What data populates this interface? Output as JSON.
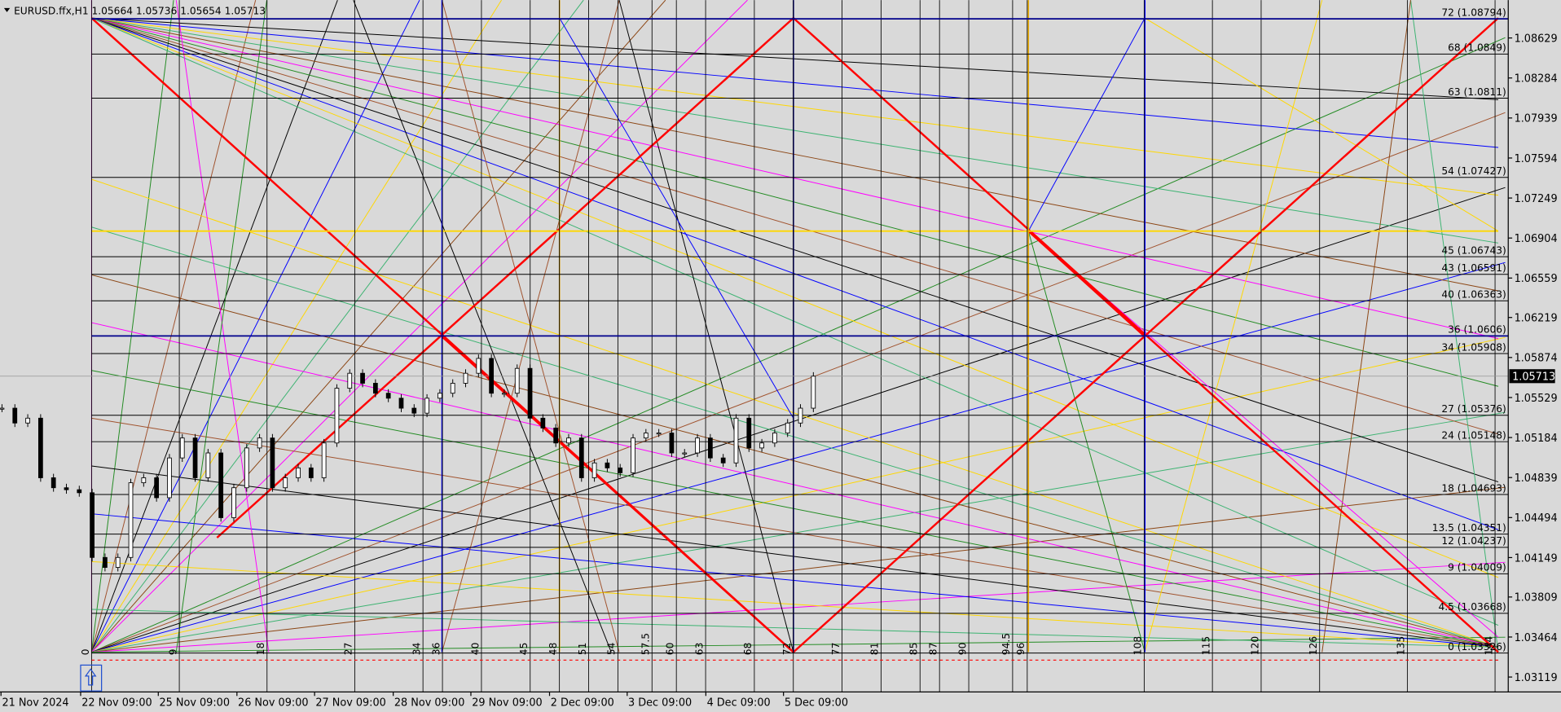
{
  "header": {
    "symbol": "EURUSD.ffx,H1",
    "ohlc": [
      1.05664,
      1.05736,
      1.05654,
      1.05713
    ]
  },
  "price_axis": {
    "ticks": [
      1.08629,
      1.08284,
      1.07939,
      1.07594,
      1.07249,
      1.06904,
      1.06559,
      1.06219,
      1.05874,
      1.05529,
      1.05184,
      1.04839,
      1.04494,
      1.04149,
      1.03809,
      1.03464,
      1.03119
    ]
  },
  "time_axis": {
    "labels": [
      "21 Nov 2024",
      "22 Nov 09:00",
      "25 Nov 09:00",
      "26 Nov 09:00",
      "27 Nov 09:00",
      "28 Nov 09:00",
      "29 Nov 09:00",
      "2 Dec 09:00",
      "3 Dec 09:00",
      "4 Dec 09:00",
      "5 Dec 09:00"
    ]
  },
  "levels": [
    {
      "degree": 72,
      "price": 1.08794
    },
    {
      "degree": 68,
      "price": 1.0849
    },
    {
      "degree": 63,
      "price": 1.0811
    },
    {
      "degree": 54,
      "price": 1.07427
    },
    {
      "degree": 45,
      "price": 1.06743
    },
    {
      "degree": 43,
      "price": 1.06591
    },
    {
      "degree": 40,
      "price": 1.06363
    },
    {
      "degree": 36,
      "price": 1.0606
    },
    {
      "degree": 34,
      "price": 1.05908
    },
    {
      "degree": 27,
      "price": 1.05376
    },
    {
      "degree": 24,
      "price": 1.05148
    },
    {
      "degree": 18,
      "price": 1.04693
    },
    {
      "degree": 13.5,
      "price": 1.04351
    },
    {
      "degree": 12,
      "price": 1.04237
    },
    {
      "degree": 9,
      "price": 1.04009
    },
    {
      "degree": 4.5,
      "price": 1.03668
    },
    {
      "degree": 0,
      "price": 1.03326
    }
  ],
  "time_degrees": [
    0,
    9,
    18,
    27,
    34,
    36,
    40,
    45,
    48,
    51,
    54,
    57.5,
    60,
    63,
    68,
    72,
    77,
    81,
    85,
    87,
    90,
    94.5,
    96,
    108,
    115,
    120,
    126,
    135,
    144
  ],
  "closes": [
    1.05437,
    1.05309,
    1.05351,
    1.04837,
    1.04751,
    1.04734,
    1.04708,
    1.0415,
    1.04064,
    1.0415,
    1.04794,
    1.04837,
    1.04665,
    1.05008,
    1.0518,
    1.04837,
    1.05051,
    1.04493,
    1.04751,
    1.05094,
    1.0518,
    1.04751,
    1.04837,
    1.04922,
    1.04837,
    1.05137,
    1.05609,
    1.05738,
    1.05652,
    1.05566,
    1.05523,
    1.05437,
    1.05394,
    1.05523,
    1.05566,
    1.05652,
    1.05738,
    1.05866,
    1.05566,
    1.05566,
    1.0578,
    1.05351,
    1.05266,
    1.05137,
    1.0518,
    1.04837,
    1.04965,
    1.04922,
    1.0488,
    1.0518,
    1.05223,
    1.05223,
    1.05051,
    1.05051,
    1.0518,
    1.05008,
    1.04965,
    1.05351,
    1.05094,
    1.05137,
    1.05223,
    1.05309,
    1.05437,
    1.05713
  ]
}
